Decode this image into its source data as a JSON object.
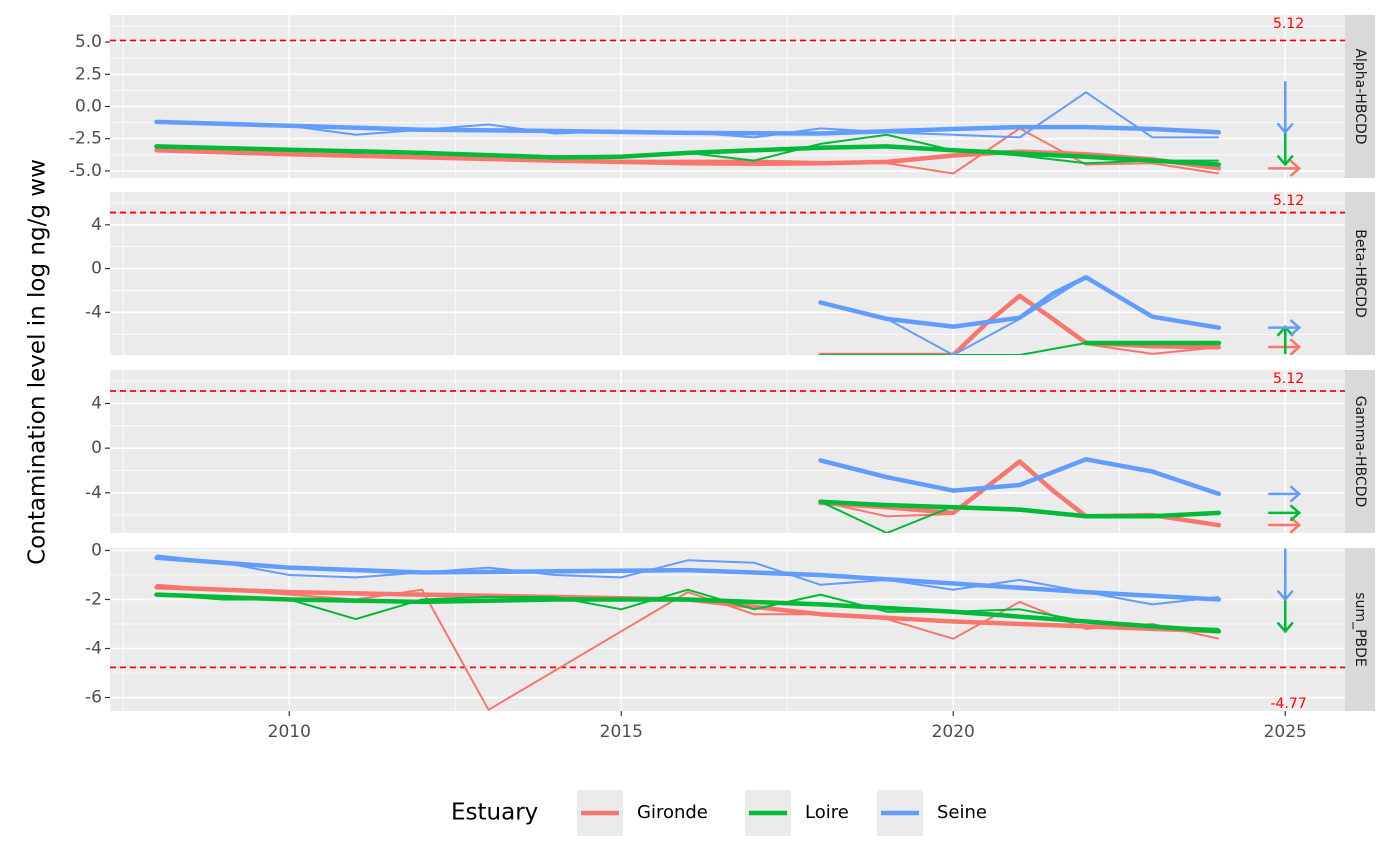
{
  "chart_data": {
    "type": "line",
    "ylabel": "Contamination level in log ng/g ww",
    "xlabel": "",
    "xlim": [
      2007.3,
      2025.9
    ],
    "x_ticks": [
      2010,
      2015,
      2020,
      2025
    ],
    "x_tick_labels": [
      "2010",
      "2015",
      "2020",
      "2025"
    ],
    "grid": true,
    "legend": {
      "title": "Estuary",
      "position": "bottom",
      "entries": [
        {
          "name": "Gironde",
          "color": "#F8766D"
        },
        {
          "name": "Loire",
          "color": "#00BA38"
        },
        {
          "name": "Seine",
          "color": "#619CFF"
        }
      ]
    },
    "panels": [
      {
        "strip": "Alpha-HBCDD",
        "ylim": [
          -5.55,
          7.1
        ],
        "y_ticks": [
          5.0,
          2.5,
          0.0,
          -2.5,
          -5.0
        ],
        "y_tick_labels": [
          "5.0",
          "2.5",
          "0.0",
          "-2.5",
          "-5.0"
        ],
        "threshold": {
          "value": 5.12,
          "label": "5.12"
        },
        "series": [
          {
            "name": "Gironde",
            "observed": {
              "x": [
                2008,
                2009,
                2010,
                2011,
                2012,
                2013,
                2014,
                2015,
                2016,
                2017,
                2018,
                2019,
                2020,
                2021,
                2022,
                2023,
                2024
              ],
              "y": [
                -3.4,
                -3.5,
                -3.6,
                -3.8,
                -3.9,
                -4.0,
                -4.1,
                -4.2,
                -4.2,
                -4.2,
                -4.3,
                -4.4,
                -5.2,
                -1.7,
                -4.5,
                -4.4,
                -5.2
              ]
            },
            "smooth": {
              "x": [
                2008,
                2010,
                2012,
                2014,
                2016,
                2017,
                2018,
                2019,
                2020,
                2021,
                2022,
                2023,
                2024
              ],
              "y": [
                -3.4,
                -3.7,
                -3.95,
                -4.2,
                -4.4,
                -4.45,
                -4.4,
                -4.3,
                -3.8,
                -3.5,
                -3.7,
                -4.1,
                -4.8
              ]
            },
            "arrow": "right"
          },
          {
            "name": "Loire",
            "observed": {
              "x": [
                2008,
                2009,
                2010,
                2011,
                2012,
                2013,
                2014,
                2015,
                2016,
                2017,
                2018,
                2019,
                2020,
                2021,
                2022,
                2023,
                2024
              ],
              "y": [
                -3.1,
                -3.3,
                -3.3,
                -3.6,
                -3.5,
                -3.8,
                -3.9,
                -3.8,
                -3.6,
                -4.2,
                -2.9,
                -2.2,
                -3.4,
                -3.8,
                -4.4,
                -4.2,
                -4.2
              ]
            },
            "smooth": {
              "x": [
                2008,
                2010,
                2012,
                2014,
                2015,
                2016,
                2017,
                2018,
                2019,
                2020,
                2021,
                2022,
                2023,
                2024
              ],
              "y": [
                -3.1,
                -3.35,
                -3.6,
                -3.95,
                -3.9,
                -3.6,
                -3.4,
                -3.2,
                -3.1,
                -3.4,
                -3.65,
                -3.9,
                -4.2,
                -4.5
              ]
            },
            "arrow": "down"
          },
          {
            "name": "Seine",
            "observed": {
              "x": [
                2008,
                2009,
                2010,
                2011,
                2012,
                2013,
                2014,
                2015,
                2016,
                2017,
                2018,
                2019,
                2020,
                2021,
                2022,
                2023,
                2024
              ],
              "y": [
                -1.2,
                -1.3,
                -1.5,
                -2.2,
                -1.8,
                -1.4,
                -2.1,
                -1.9,
                -2.0,
                -2.4,
                -1.7,
                -2.0,
                -2.2,
                -2.4,
                1.1,
                -2.4,
                -2.4
              ]
            },
            "smooth": {
              "x": [
                2008,
                2010,
                2012,
                2014,
                2016,
                2018,
                2020,
                2021,
                2022,
                2023,
                2024
              ],
              "y": [
                -1.2,
                -1.5,
                -1.8,
                -1.9,
                -2.05,
                -2.1,
                -1.75,
                -1.6,
                -1.6,
                -1.75,
                -2.0
              ]
            },
            "arrow": "down"
          }
        ]
      },
      {
        "strip": "Beta-HBCDD",
        "ylim": [
          -7.9,
          7.0
        ],
        "y_ticks": [
          4,
          0,
          -4
        ],
        "y_tick_labels": [
          "4",
          "0",
          "-4"
        ],
        "threshold": {
          "value": 5.12,
          "label": "5.12"
        },
        "series": [
          {
            "name": "Gironde",
            "observed": {
              "x": [
                2018,
                2019,
                2020,
                2021,
                2022,
                2023,
                2024
              ],
              "y": [
                -7.9,
                -7.9,
                -7.9,
                -2.4,
                -6.9,
                -7.8,
                -7.2
              ]
            },
            "smooth": {
              "x": [
                2018,
                2019,
                2020,
                2020.5,
                2021,
                2021.5,
                2022,
                2023,
                2024
              ],
              "y": [
                -7.9,
                -7.9,
                -7.9,
                -5.0,
                -2.5,
                -4.6,
                -6.8,
                -7.1,
                -7.2
              ]
            },
            "arrow": "right"
          },
          {
            "name": "Loire",
            "observed": {
              "x": [
                2018,
                2019,
                2020,
                2021,
                2022,
                2023,
                2024
              ],
              "y": [
                -7.9,
                -7.9,
                -7.9,
                -7.9,
                -6.8,
                -6.8,
                -6.8
              ]
            },
            "smooth": {
              "x": [
                2022,
                2023,
                2024
              ],
              "y": [
                -6.8,
                -6.8,
                -6.8
              ]
            },
            "arrow": "up"
          },
          {
            "name": "Seine",
            "observed": {
              "x": [
                2018,
                2019,
                2020,
                2021,
                2022,
                2023,
                2024
              ],
              "y": [
                -3.1,
                -4.6,
                -7.9,
                -4.6,
                -0.8,
                -4.4,
                -5.4
              ]
            },
            "smooth": {
              "x": [
                2018,
                2019,
                2020,
                2021,
                2021.5,
                2022,
                2022.5,
                2023,
                2024
              ],
              "y": [
                -3.1,
                -4.6,
                -5.3,
                -4.5,
                -2.3,
                -0.8,
                -2.6,
                -4.4,
                -5.4
              ]
            },
            "arrow": "right"
          }
        ]
      },
      {
        "strip": "Gamma-HBCDD",
        "ylim": [
          -7.6,
          7.0
        ],
        "y_ticks": [
          4,
          0,
          -4
        ],
        "y_tick_labels": [
          "4",
          "0",
          "-4"
        ],
        "threshold": {
          "value": 5.12,
          "label": "5.12"
        },
        "series": [
          {
            "name": "Gironde",
            "observed": {
              "x": [
                2018,
                2019,
                2020,
                2021,
                2022,
                2023,
                2024
              ],
              "y": [
                -4.8,
                -6.1,
                -5.9,
                -1.2,
                -6.1,
                -6.0,
                -6.9
              ]
            },
            "smooth": {
              "x": [
                2018,
                2019,
                2020,
                2020.5,
                2021,
                2021.5,
                2022,
                2023,
                2024
              ],
              "y": [
                -4.9,
                -5.3,
                -5.8,
                -3.5,
                -1.2,
                -3.8,
                -6.1,
                -6.0,
                -6.9
              ]
            },
            "arrow": "right"
          },
          {
            "name": "Loire",
            "observed": {
              "x": [
                2018,
                2019,
                2020,
                2021,
                2022,
                2023,
                2024
              ],
              "y": [
                -4.8,
                -7.6,
                -5.2,
                -5.6,
                -6.1,
                -6.1,
                -5.7
              ]
            },
            "smooth": {
              "x": [
                2018,
                2019,
                2020,
                2021,
                2022,
                2023,
                2024
              ],
              "y": [
                -4.8,
                -5.1,
                -5.3,
                -5.5,
                -6.1,
                -6.1,
                -5.8
              ]
            },
            "arrow": "right"
          },
          {
            "name": "Seine",
            "observed": {
              "x": [
                2018,
                2019,
                2020,
                2021,
                2022,
                2023,
                2024
              ],
              "y": [
                -1.0,
                -2.5,
                -3.8,
                -3.3,
                -0.9,
                -2.0,
                -4.1
              ]
            },
            "smooth": {
              "x": [
                2018,
                2019,
                2020,
                2021,
                2022,
                2023,
                2024
              ],
              "y": [
                -1.1,
                -2.6,
                -3.8,
                -3.3,
                -1.0,
                -2.1,
                -4.1
              ]
            },
            "arrow": "right"
          }
        ]
      },
      {
        "strip": "sum_PBDE",
        "ylim": [
          -6.55,
          0.1
        ],
        "y_ticks": [
          0,
          -2,
          -4,
          -6
        ],
        "y_tick_labels": [
          "0",
          "-2",
          "-4",
          "-6"
        ],
        "threshold": {
          "value": -4.77,
          "label": "-4.77"
        },
        "series": [
          {
            "name": "Gironde",
            "observed": {
              "x": [
                2008,
                2009,
                2010,
                2011,
                2012,
                2013,
                2014,
                2015,
                2016,
                2017,
                2018,
                2019,
                2020,
                2021,
                2022,
                2023,
                2024
              ],
              "y": [
                -1.4,
                -1.6,
                -1.8,
                -2.0,
                -1.6,
                -6.5,
                -4.9,
                -3.3,
                -1.7,
                -2.6,
                -2.6,
                -2.8,
                -3.6,
                -2.1,
                -3.2,
                -3.0,
                -3.6
              ]
            },
            "smooth": {
              "x": [
                2008,
                2010,
                2012,
                2014,
                2016,
                2018,
                2020,
                2022,
                2024
              ],
              "y": [
                -1.5,
                -1.7,
                -1.8,
                -1.9,
                -2.0,
                -2.6,
                -2.9,
                -3.1,
                -3.3
              ]
            },
            "arrow": "down"
          },
          {
            "name": "Loire",
            "observed": {
              "x": [
                2008,
                2009,
                2010,
                2011,
                2012,
                2013,
                2014,
                2015,
                2016,
                2017,
                2018,
                2019,
                2020,
                2021,
                2022,
                2023,
                2024
              ],
              "y": [
                -1.8,
                -2.0,
                -2.0,
                -2.8,
                -2.0,
                -1.9,
                -1.9,
                -2.4,
                -1.6,
                -2.4,
                -1.8,
                -2.5,
                -2.5,
                -2.4,
                -2.9,
                -3.1,
                -3.2
              ]
            },
            "smooth": {
              "x": [
                2008,
                2010,
                2012,
                2014,
                2016,
                2018,
                2020,
                2022,
                2024
              ],
              "y": [
                -1.8,
                -2.0,
                -2.1,
                -2.0,
                -2.0,
                -2.2,
                -2.5,
                -2.9,
                -3.3
              ]
            },
            "arrow": "down"
          },
          {
            "name": "Seine",
            "observed": {
              "x": [
                2008,
                2009,
                2010,
                2011,
                2012,
                2013,
                2014,
                2015,
                2016,
                2017,
                2018,
                2019,
                2020,
                2021,
                2022,
                2023,
                2024
              ],
              "y": [
                -0.2,
                -0.5,
                -1.0,
                -1.1,
                -0.9,
                -0.7,
                -1.0,
                -1.1,
                -0.4,
                -0.5,
                -1.4,
                -1.2,
                -1.6,
                -1.2,
                -1.7,
                -2.2,
                -1.9
              ]
            },
            "smooth": {
              "x": [
                2008,
                2010,
                2012,
                2014,
                2016,
                2018,
                2020,
                2022,
                2024
              ],
              "y": [
                -0.3,
                -0.7,
                -0.9,
                -0.85,
                -0.8,
                -1.0,
                -1.35,
                -1.7,
                -2.0
              ]
            },
            "arrow": "down"
          }
        ]
      }
    ]
  }
}
